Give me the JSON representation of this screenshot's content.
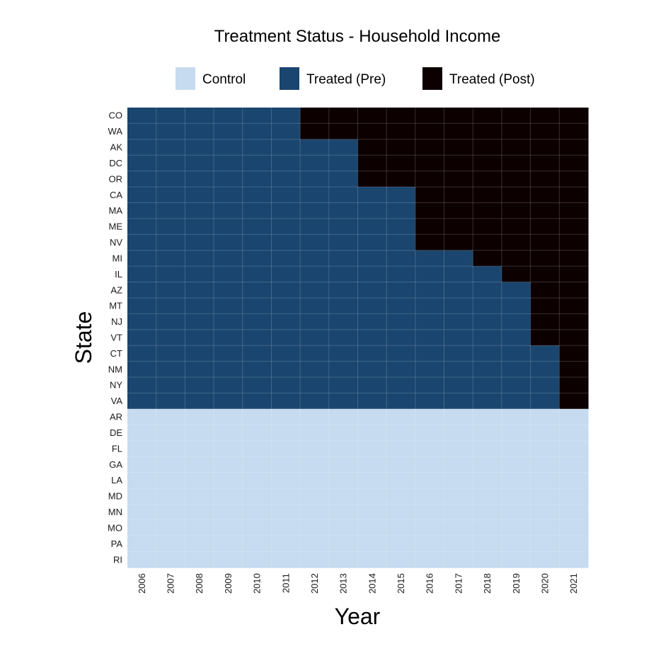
{
  "chart_data": {
    "type": "heatmap",
    "title": "Treatment Status - Household Income",
    "xlabel": "Year",
    "ylabel": "State",
    "x": [
      "2006",
      "2007",
      "2008",
      "2009",
      "2010",
      "2011",
      "2012",
      "2013",
      "2014",
      "2015",
      "2016",
      "2017",
      "2018",
      "2019",
      "2020",
      "2021"
    ],
    "y": [
      "CO",
      "WA",
      "AK",
      "DC",
      "OR",
      "CA",
      "MA",
      "ME",
      "NV",
      "MI",
      "IL",
      "AZ",
      "MT",
      "NJ",
      "VT",
      "CT",
      "NM",
      "NY",
      "VA",
      "AR",
      "DE",
      "FL",
      "GA",
      "LA",
      "MD",
      "MN",
      "MO",
      "PA",
      "RI"
    ],
    "legend": {
      "position": "top",
      "entries": [
        {
          "key": "control",
          "label": "Control",
          "color": "#c6dbef"
        },
        {
          "key": "pre",
          "label": "Treated (Pre)",
          "color": "#1a456e"
        },
        {
          "key": "post",
          "label": "Treated (Post)",
          "color": "#0d0000"
        }
      ]
    },
    "treatment_start_year": {
      "CO": 2012,
      "WA": 2012,
      "AK": 2014,
      "DC": 2014,
      "OR": 2014,
      "CA": 2016,
      "MA": 2016,
      "ME": 2016,
      "NV": 2016,
      "MI": 2018,
      "IL": 2019,
      "AZ": 2020,
      "MT": 2020,
      "NJ": 2020,
      "VT": 2020,
      "CT": 2021,
      "NM": 2021,
      "NY": 2021,
      "VA": 2021
    },
    "control_states": [
      "AR",
      "DE",
      "FL",
      "GA",
      "LA",
      "MD",
      "MN",
      "MO",
      "PA",
      "RI"
    ],
    "grid": true
  }
}
